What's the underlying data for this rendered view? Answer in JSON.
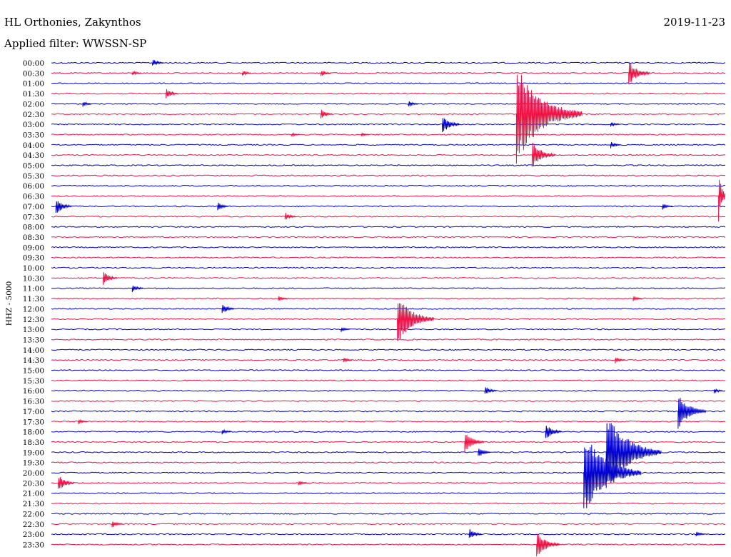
{
  "header": {
    "station": "HL Orthonies, Zakynthos",
    "filter": "Applied filter: WWSSN-SP",
    "date": "2019-11-23"
  },
  "chart_data": {
    "type": "line",
    "title": "HL Orthonies, Zakynthos",
    "subtitle": "Applied filter: WWSSN-SP",
    "date": "2019-11-23",
    "ylabel": "HHZ - 5000",
    "rows": [
      "00:00",
      "00:30",
      "01:00",
      "01:30",
      "02:00",
      "02:30",
      "03:00",
      "03:30",
      "04:00",
      "04:30",
      "05:00",
      "05:30",
      "06:00",
      "06:30",
      "07:00",
      "07:30",
      "08:00",
      "08:30",
      "09:00",
      "09:30",
      "10:00",
      "10:30",
      "11:00",
      "11:30",
      "12:00",
      "12:30",
      "13:00",
      "13:30",
      "14:00",
      "14:30",
      "15:00",
      "15:30",
      "16:00",
      "16:30",
      "17:00",
      "17:30",
      "18:00",
      "18:30",
      "19:00",
      "19:30",
      "20:00",
      "20:30",
      "21:00",
      "21:30",
      "22:00",
      "22:30",
      "23:00",
      "23:30"
    ],
    "row_minutes": 30,
    "series_colors": [
      "#0000cc",
      "#ee1144"
    ],
    "grid": false,
    "events": [
      {
        "row": "00:00",
        "minute": 4.5,
        "amp": 6
      },
      {
        "row": "00:30",
        "minute": 3.6,
        "amp": 4
      },
      {
        "row": "00:30",
        "minute": 8.5,
        "amp": 4
      },
      {
        "row": "00:30",
        "minute": 12.0,
        "amp": 5
      },
      {
        "row": "00:30",
        "minute": 25.7,
        "amp": 18
      },
      {
        "row": "01:30",
        "minute": 5.1,
        "amp": 8
      },
      {
        "row": "02:00",
        "minute": 1.4,
        "amp": 4
      },
      {
        "row": "02:00",
        "minute": 15.9,
        "amp": 5
      },
      {
        "row": "02:30",
        "minute": 12.0,
        "amp": 7
      },
      {
        "row": "02:30",
        "minute": 20.7,
        "amp": 70
      },
      {
        "row": "03:00",
        "minute": 17.4,
        "amp": 14
      },
      {
        "row": "03:00",
        "minute": 24.9,
        "amp": 4
      },
      {
        "row": "03:30",
        "minute": 10.7,
        "amp": 3
      },
      {
        "row": "03:30",
        "minute": 13.8,
        "amp": 3
      },
      {
        "row": "04:00",
        "minute": 24.9,
        "amp": 5
      },
      {
        "row": "04:30",
        "minute": 21.4,
        "amp": 20
      },
      {
        "row": "06:30",
        "minute": 29.7,
        "amp": 36
      },
      {
        "row": "07:00",
        "minute": 0.2,
        "amp": 12
      },
      {
        "row": "07:00",
        "minute": 7.4,
        "amp": 6
      },
      {
        "row": "07:00",
        "minute": 27.2,
        "amp": 5
      },
      {
        "row": "07:30",
        "minute": 10.4,
        "amp": 6
      },
      {
        "row": "10:30",
        "minute": 2.3,
        "amp": 10
      },
      {
        "row": "11:00",
        "minute": 3.6,
        "amp": 6
      },
      {
        "row": "11:30",
        "minute": 10.1,
        "amp": 4
      },
      {
        "row": "11:30",
        "minute": 25.9,
        "amp": 4
      },
      {
        "row": "12:00",
        "minute": 7.6,
        "amp": 8
      },
      {
        "row": "12:30",
        "minute": 15.4,
        "amp": 36
      },
      {
        "row": "13:00",
        "minute": 12.9,
        "amp": 4
      },
      {
        "row": "14:30",
        "minute": 13.0,
        "amp": 4
      },
      {
        "row": "14:30",
        "minute": 25.1,
        "amp": 5
      },
      {
        "row": "16:00",
        "minute": 19.3,
        "amp": 7
      },
      {
        "row": "16:00",
        "minute": 29.5,
        "amp": 4
      },
      {
        "row": "17:00",
        "minute": 27.9,
        "amp": 26
      },
      {
        "row": "17:30",
        "minute": 1.2,
        "amp": 4
      },
      {
        "row": "18:00",
        "minute": 7.6,
        "amp": 4
      },
      {
        "row": "18:00",
        "minute": 22.0,
        "amp": 12
      },
      {
        "row": "18:30",
        "minute": 18.4,
        "amp": 16
      },
      {
        "row": "19:00",
        "minute": 19.0,
        "amp": 8
      },
      {
        "row": "19:00",
        "minute": 24.7,
        "amp": 58
      },
      {
        "row": "20:00",
        "minute": 23.7,
        "amp": 60
      },
      {
        "row": "20:30",
        "minute": 0.3,
        "amp": 12
      },
      {
        "row": "20:30",
        "minute": 11.0,
        "amp": 4
      },
      {
        "row": "22:30",
        "minute": 2.7,
        "amp": 6
      },
      {
        "row": "23:00",
        "minute": 18.6,
        "amp": 8
      },
      {
        "row": "23:00",
        "minute": 28.7,
        "amp": 4
      },
      {
        "row": "23:30",
        "minute": 21.6,
        "amp": 20
      }
    ]
  }
}
